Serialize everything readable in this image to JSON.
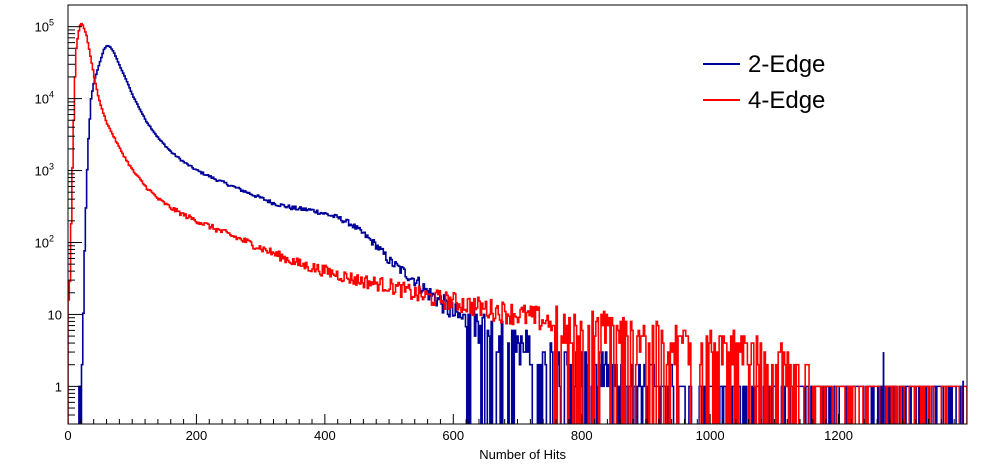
{
  "chart_data": {
    "type": "line",
    "title": "",
    "xlabel": "Number of Hits",
    "ylabel": "",
    "xlim": [
      0,
      1400
    ],
    "ylim": [
      0.3,
      200000
    ],
    "y_scale": "log",
    "grid": false,
    "legend_position": "top-right",
    "x_ticks": [
      {
        "value": 0,
        "label": "0"
      },
      {
        "value": 200,
        "label": "200"
      },
      {
        "value": 400,
        "label": "400"
      },
      {
        "value": 600,
        "label": "600"
      },
      {
        "value": 800,
        "label": "800"
      },
      {
        "value": 1000,
        "label": "1000"
      },
      {
        "value": 1200,
        "label": "1200"
      }
    ],
    "y_ticks": [
      {
        "value": 1,
        "label": "1",
        "exp": ""
      },
      {
        "value": 10,
        "label": "10",
        "exp": ""
      },
      {
        "value": 100,
        "label": "10",
        "exp": "2"
      },
      {
        "value": 1000,
        "label": "10",
        "exp": "3"
      },
      {
        "value": 10000,
        "label": "10",
        "exp": "4"
      },
      {
        "value": 100000,
        "label": "10",
        "exp": "5"
      }
    ],
    "series": [
      {
        "name": "2-Edge",
        "color": "#000099",
        "x": [
          15,
          20,
          25,
          30,
          35,
          40,
          45,
          50,
          55,
          60,
          65,
          70,
          80,
          90,
          100,
          120,
          140,
          160,
          180,
          200,
          230,
          260,
          290,
          320,
          350,
          380,
          400,
          420,
          440,
          460,
          480,
          500,
          520,
          540,
          560,
          580,
          600,
          620,
          640,
          660,
          680,
          700,
          750,
          800,
          850,
          900,
          950,
          1000,
          1050,
          1100,
          1150,
          1200,
          1270,
          1394
        ],
        "values": [
          0.1,
          0.3,
          80,
          2000,
          10000,
          18000,
          25000,
          35000,
          48000,
          55000,
          52000,
          45000,
          28000,
          18000,
          11000,
          5000,
          2800,
          1800,
          1300,
          1000,
          750,
          580,
          450,
          350,
          300,
          280,
          250,
          220,
          180,
          130,
          90,
          55,
          40,
          30,
          20,
          15,
          10,
          8,
          6,
          5,
          4,
          3,
          2,
          1.5,
          1.2,
          1.0,
          0.8,
          0.7,
          0.5,
          0.5,
          0.4,
          0.4,
          0.5,
          0.6
        ]
      },
      {
        "name": "4-Edge",
        "color": "#ff0000",
        "x": [
          0,
          2,
          5,
          8,
          10,
          12,
          15,
          18,
          20,
          22,
          25,
          28,
          30,
          35,
          40,
          45,
          50,
          60,
          70,
          80,
          90,
          100,
          120,
          140,
          160,
          180,
          200,
          240,
          280,
          320,
          360,
          400,
          450,
          500,
          550,
          600,
          650,
          700,
          750,
          800,
          850,
          900,
          950,
          1000,
          1050,
          1100,
          1150,
          1200,
          1300,
          1400
        ],
        "values": [
          15,
          30,
          500,
          5000,
          20000,
          50000,
          80000,
          105000,
          110000,
          105000,
          90000,
          75000,
          60000,
          35000,
          20000,
          12000,
          8000,
          4500,
          3000,
          2000,
          1400,
          1000,
          600,
          400,
          300,
          240,
          200,
          140,
          100,
          70,
          50,
          40,
          30,
          25,
          18,
          15,
          12,
          10,
          8,
          6,
          5,
          4,
          3.5,
          3,
          2.5,
          2,
          1,
          0.6,
          0.5,
          0.4
        ]
      }
    ]
  }
}
